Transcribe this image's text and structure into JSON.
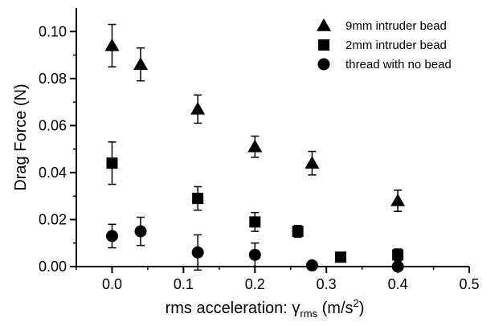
{
  "chart_data": {
    "type": "scatter",
    "xlabel": {
      "main": "rms acceleration: γ",
      "subscript": "rms",
      "unit_prefix": " (m/s",
      "superscript": "2",
      "unit_suffix": ")"
    },
    "ylabel": "Drag Force (N)",
    "xlim": [
      -0.05,
      0.5
    ],
    "ylim": [
      0.0,
      0.11
    ],
    "xticks": [
      "0.0",
      "0.1",
      "0.2",
      "0.3",
      "0.4",
      "0.5"
    ],
    "xtick_values": [
      0.0,
      0.1,
      0.2,
      0.3,
      0.4,
      0.5
    ],
    "yticks": [
      "0.00",
      "0.02",
      "0.04",
      "0.06",
      "0.08",
      "0.10"
    ],
    "ytick_values": [
      0.0,
      0.02,
      0.04,
      0.06,
      0.08,
      0.1
    ],
    "grid": false,
    "legend_position": "top-right",
    "series": [
      {
        "name": "9mm intruder bead",
        "marker": "triangle",
        "x": [
          0.0,
          0.04,
          0.12,
          0.2,
          0.28,
          0.4
        ],
        "y": [
          0.094,
          0.086,
          0.067,
          0.051,
          0.044,
          0.028
        ],
        "err": [
          0.009,
          0.007,
          0.006,
          0.0045,
          0.005,
          0.0045
        ]
      },
      {
        "name": "2mm intruder bead",
        "marker": "square",
        "x": [
          0.0,
          0.12,
          0.2,
          0.26,
          0.32,
          0.4
        ],
        "y": [
          0.044,
          0.029,
          0.019,
          0.015,
          0.004,
          0.005
        ],
        "err": [
          0.009,
          0.005,
          0.004,
          0.0025,
          0.0,
          0.0025
        ]
      },
      {
        "name": "thread with no bead",
        "marker": "circle",
        "x": [
          0.0,
          0.04,
          0.12,
          0.2,
          0.28,
          0.4
        ],
        "y": [
          0.013,
          0.015,
          0.006,
          0.005,
          0.0005,
          0.0
        ],
        "err": [
          0.005,
          0.006,
          0.0075,
          0.005,
          0.0,
          0.0
        ]
      }
    ]
  }
}
